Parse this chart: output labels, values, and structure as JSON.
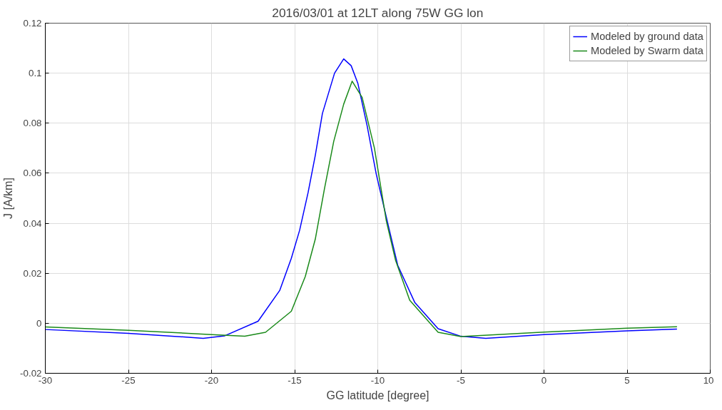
{
  "chart_data": {
    "type": "line",
    "title": "2016/03/01 at 12LT along 75W GG lon",
    "xlabel": "GG latitude [degree]",
    "ylabel": "J [A/km]",
    "xlim": [
      -30,
      10
    ],
    "xticks": [
      -30,
      -25,
      -20,
      -15,
      -10,
      -5,
      0,
      5,
      10
    ],
    "ylim": [
      -0.02,
      0.12
    ],
    "yticks": [
      -0.02,
      0,
      0.02,
      0.04,
      0.06,
      0.08,
      0.1,
      0.12
    ],
    "grid": true,
    "legend": "top right",
    "line_style": "solid",
    "marker": "none",
    "series": [
      {
        "name": "Modeled by ground data",
        "color": "#0000ff",
        "x": [
          -30,
          -25,
          -20.5,
          -19.2,
          -17.2,
          -15.9,
          -15.2,
          -14.7,
          -14.19,
          -13.76,
          -13.33,
          -12.6,
          -12.05,
          -11.6,
          -11.2,
          -10.64,
          -10.09,
          -9.3,
          -8.8,
          -7.78,
          -6.37,
          -5,
          -3.5,
          0,
          5,
          8
        ],
        "values": [
          -0.0025,
          -0.004,
          -0.006,
          -0.005,
          0.0008,
          0.0131,
          0.026,
          0.0372,
          0.0523,
          0.0671,
          0.0839,
          0.1,
          0.1057,
          0.103,
          0.096,
          0.079,
          0.0596,
          0.0372,
          0.0232,
          0.0084,
          -0.0022,
          -0.0052,
          -0.006,
          -0.0045,
          -0.003,
          -0.0023
        ]
      },
      {
        "name": "Modeled by Swarm data",
        "color": "#1a8a1a",
        "x": [
          -30,
          -25,
          -20,
          -18,
          -16.75,
          -15.2,
          -14.36,
          -13.76,
          -13.2,
          -12.65,
          -12.05,
          -11.54,
          -10.94,
          -10.2,
          -9.49,
          -8.93,
          -8.08,
          -6.37,
          -5,
          0,
          5,
          8
        ],
        "values": [
          -0.0015,
          -0.0028,
          -0.0045,
          -0.0052,
          -0.0036,
          0.0048,
          0.0187,
          0.0336,
          0.054,
          0.0727,
          0.0876,
          0.0968,
          0.0903,
          0.07,
          0.0411,
          0.0252,
          0.0092,
          -0.0036,
          -0.0053,
          -0.0035,
          -0.002,
          -0.0014
        ]
      }
    ]
  }
}
